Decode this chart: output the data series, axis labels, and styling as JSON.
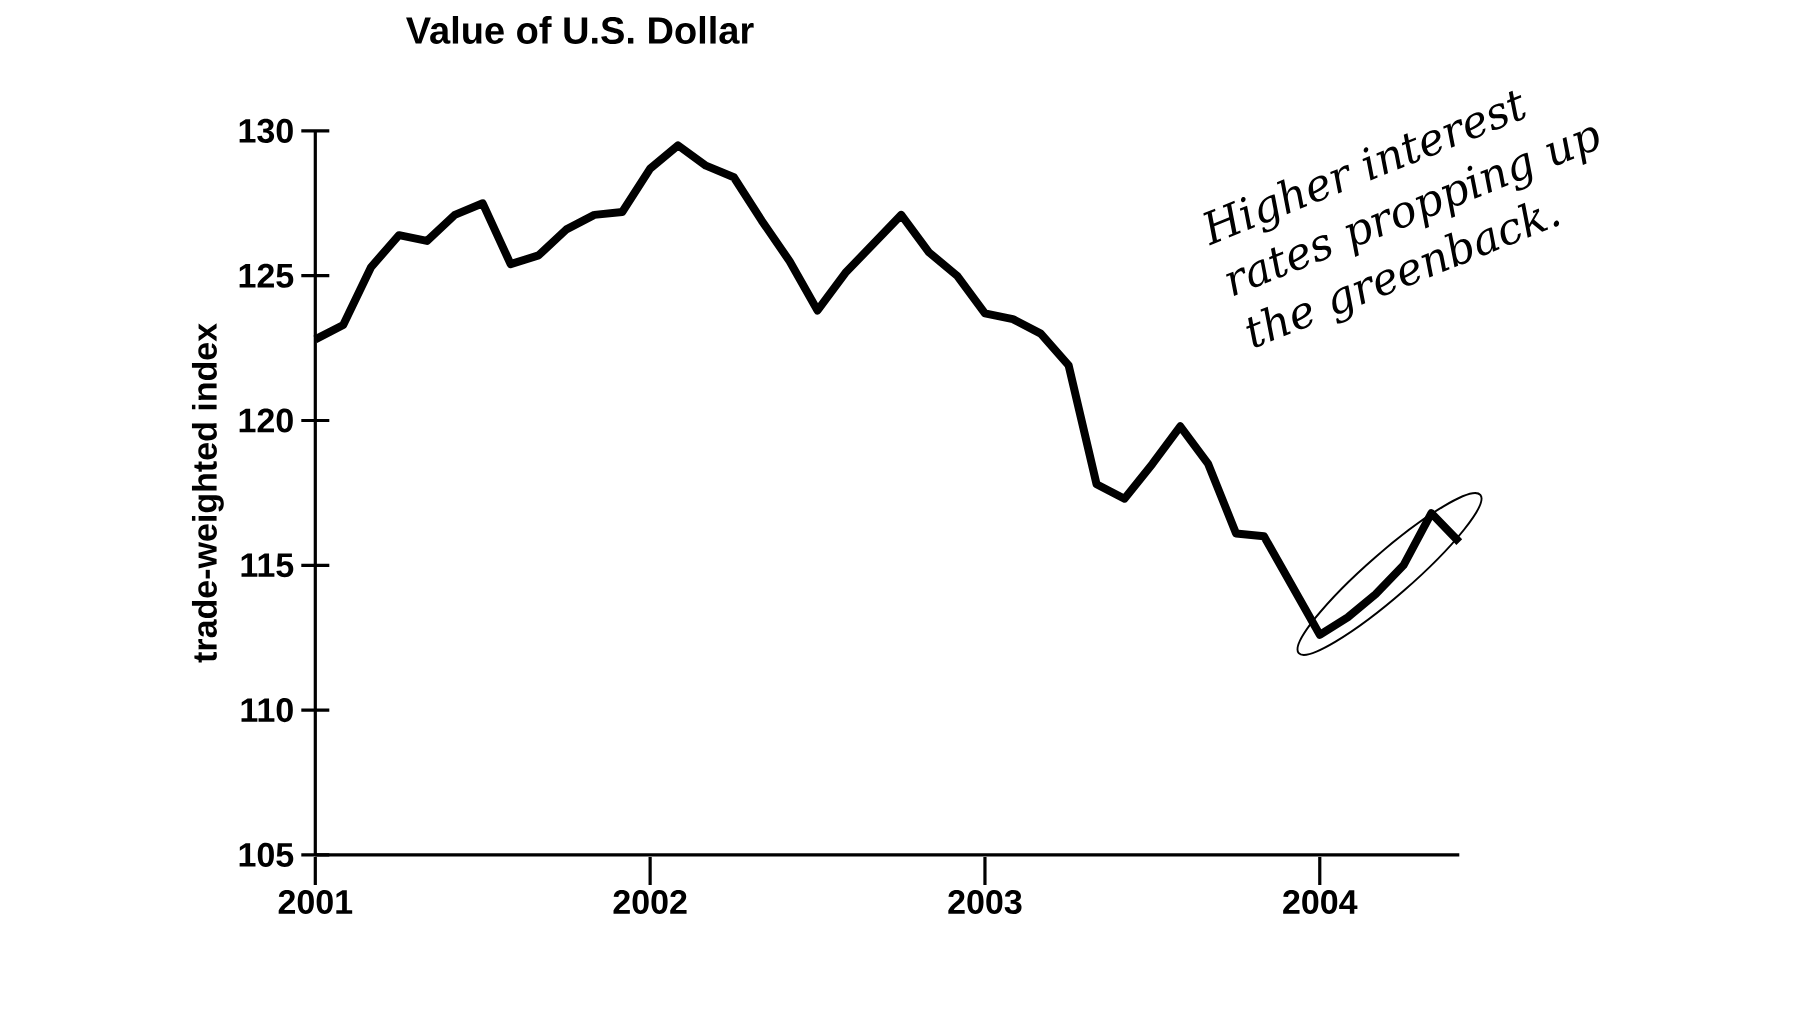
{
  "chart_data": {
    "type": "line",
    "title": "Value of U.S. Dollar",
    "ylabel": "trade-weighted index",
    "annotations": [
      "Higher interest rates propping up the greenback."
    ],
    "x": [
      "2001-01",
      "2001-02",
      "2001-03",
      "2001-04",
      "2001-05",
      "2001-06",
      "2001-07",
      "2001-08",
      "2001-09",
      "2001-10",
      "2001-11",
      "2001-12",
      "2002-01",
      "2002-02",
      "2002-03",
      "2002-04",
      "2002-05",
      "2002-06",
      "2002-07",
      "2002-08",
      "2002-09",
      "2002-10",
      "2002-11",
      "2002-12",
      "2003-01",
      "2003-02",
      "2003-03",
      "2003-04",
      "2003-05",
      "2003-06",
      "2003-07",
      "2003-08",
      "2003-09",
      "2003-10",
      "2003-11",
      "2003-12",
      "2004-01",
      "2004-02",
      "2004-03",
      "2004-04",
      "2004-05",
      "2004-06"
    ],
    "series": [
      {
        "color": "#000000",
        "values": [
          122.8,
          123.3,
          125.3,
          126.4,
          126.2,
          127.1,
          127.5,
          125.4,
          125.7,
          126.6,
          127.1,
          127.2,
          128.7,
          129.5,
          128.8,
          128.4,
          126.9,
          125.5,
          123.8,
          125.1,
          126.1,
          127.1,
          125.8,
          125.0,
          123.7,
          123.5,
          123.0,
          121.9,
          117.8,
          117.3,
          118.5,
          119.8,
          118.5,
          116.1,
          116.0,
          114.3,
          112.6,
          113.2,
          114.0,
          115.0,
          116.8,
          115.8
        ]
      }
    ],
    "xlim": [
      "2001-01",
      "2004-06"
    ],
    "xticks": [
      "2001",
      "2002",
      "2003",
      "2004"
    ],
    "ylim": [
      105,
      130
    ],
    "yticks": [
      105,
      110,
      115,
      120,
      125,
      130
    ],
    "grid": false,
    "marker": "none",
    "line_style": "solid"
  }
}
